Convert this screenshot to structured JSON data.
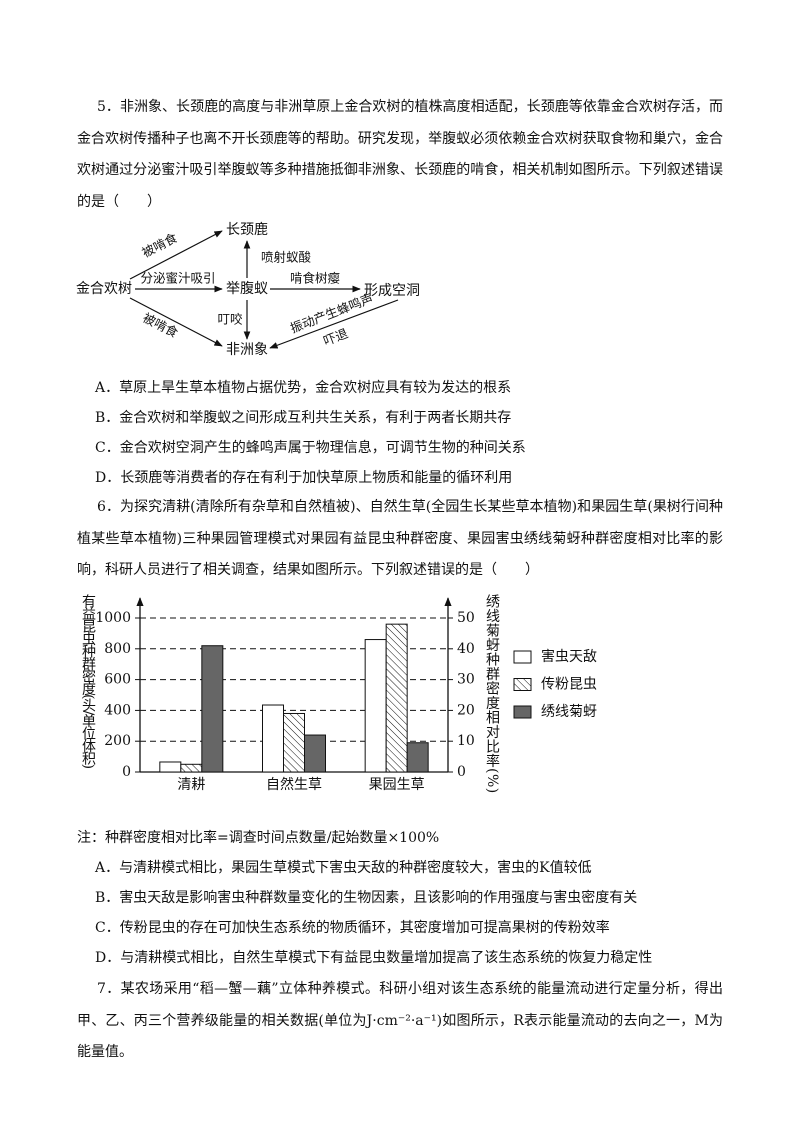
{
  "questions": [
    {
      "stem": "5．非洲象、长颈鹿的高度与非洲草原上金合欢树的植株高度相适配，长颈鹿等依靠金合欢树存活，而金合欢树传播种子也离不开长颈鹿等的帮助。研究发现，举腹蚁必须依赖金合欢树获取食物和巢穴，金合欢树通过分泌蜜汁吸引举腹蚁等多种措施抵御非洲象、长颈鹿的啃食，相关机制如图所示。下列叙述错误的是（　　）",
      "diagram": {
        "nodes": [
          "长颈鹿",
          "金合欢树",
          "举腹蚁",
          "形成空洞",
          "非洲象"
        ],
        "edge_labels": [
          "被啃食",
          "分泌蜜汁吸引",
          "被啃食",
          "喷射蚁酸",
          "叮咬",
          "啃食树瘿",
          "振动产生蜂鸣声",
          "吓退"
        ]
      },
      "options": [
        "A．草原上旱生草本植物占据优势，金合欢树应具有较为发达的根系",
        "B．金合欢树和举腹蚁之间形成互利共生关系，有利于两者长期共存",
        "C．金合欢树空洞产生的蜂鸣声属于物理信息，可调节生物的种间关系",
        "D．长颈鹿等消费者的存在有利于加快草原上物质和能量的循环利用"
      ]
    },
    {
      "stem": "6．为探究清耕(清除所有杂草和自然植被)、自然生草(全园生长某些草本植物)和果园生草(果树行间种植某些草本植物)三种果园管理模式对果园有益昆虫种群密度、果园害虫绣线菊蚜种群密度相对比率的影响，科研人员进行了相关调查，结果如图所示。下列叙述错误的是（　　）",
      "note": "注：种群密度相对比率=调查时间点数量/起始数量×100%",
      "options": [
        "A．与清耕模式相比，果园生草模式下害虫天敌的种群密度较大，害虫的K值较低",
        "B．害虫天敌是影响害虫种群数量变化的生物因素，且该影响的作用强度与害虫密度有关",
        "C．传粉昆虫的存在可加快生态系统的物质循环，其密度增加可提高果树的传粉效率",
        "D．与清耕模式相比，自然生草模式下有益昆虫数量增加提高了该生态系统的恢复力稳定性"
      ]
    },
    {
      "stem": "7．某农场采用“稻—蟹—藕”立体种养模式。科研小组对该生态系统的能量流动进行定量分析，得出甲、乙、丙三个营养级能量的相关数据(单位为J·cm⁻²·a⁻¹)如图所示，R表示能量流动的去向之一，M为能量值。"
    }
  ],
  "chart_data": {
    "type": "bar",
    "y_label": "有益昆虫种群密度(头/单位体积)",
    "y2_label": "绣线菊蚜种群密度相对比率(%)",
    "categories": [
      "清耕",
      "自然生草",
      "果园生草"
    ],
    "series": [
      {
        "name": "害虫天敌",
        "color": "#ffffff",
        "values": [
          65,
          435,
          860
        ]
      },
      {
        "name": "传粉昆虫",
        "color": "#ffffff",
        "pattern": "hatch",
        "values": [
          50,
          380,
          960
        ]
      },
      {
        "name": "绣线菊蚜",
        "color": "#666666",
        "axis": "y2",
        "values": [
          41,
          12,
          9.5
        ]
      }
    ],
    "ylim": [
      0,
      1000
    ],
    "yticks": [
      0,
      200,
      400,
      600,
      800,
      1000
    ],
    "y2lim": [
      0,
      50
    ],
    "y2ticks": [
      0,
      10,
      20,
      30,
      40,
      50
    ],
    "grid": true,
    "legend": "right"
  }
}
